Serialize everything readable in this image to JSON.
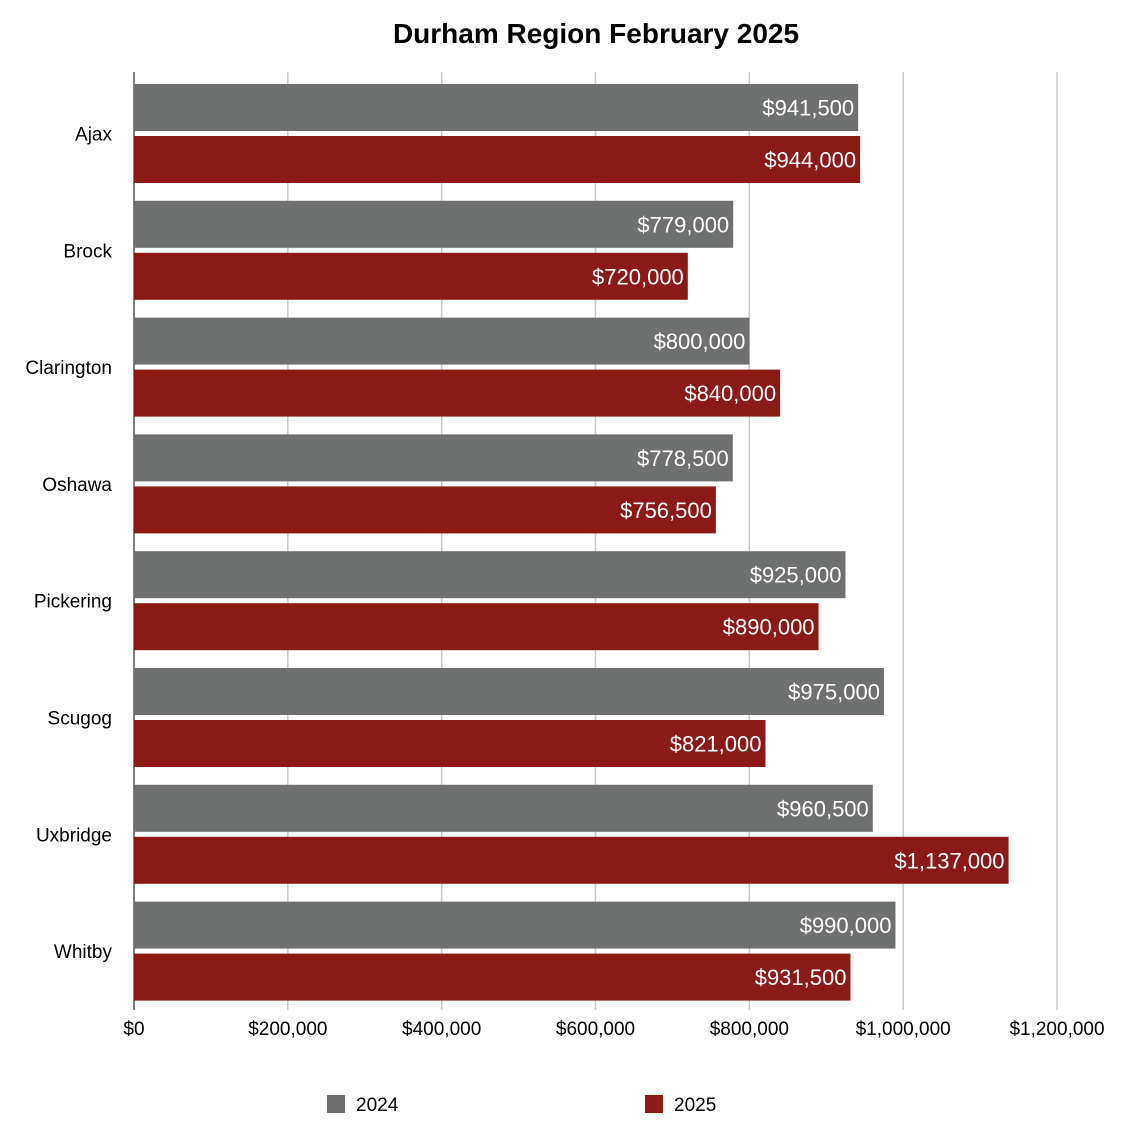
{
  "chart_data": {
    "type": "bar",
    "orientation": "horizontal",
    "title": "Durham Region February 2025",
    "categories": [
      "Ajax",
      "Brock",
      "Clarington",
      "Oshawa",
      "Pickering",
      "Scugog",
      "Uxbridge",
      "Whitby"
    ],
    "series": [
      {
        "name": "2024",
        "color": "#6e716f",
        "values": [
          941500,
          779000,
          800000,
          778500,
          925000,
          975000,
          960500,
          990000
        ],
        "labels": [
          "$941,500",
          "$779,000",
          "$800,000",
          "$778,500",
          "$925,000",
          "$975,000",
          "$960,500",
          "$990,000"
        ]
      },
      {
        "name": "2025",
        "color": "#8b1a16",
        "values": [
          944000,
          720000,
          840000,
          756500,
          890000,
          821000,
          1137000,
          931500
        ],
        "labels": [
          "$944,000",
          "$720,000",
          "$840,000",
          "$756,500",
          "$890,000",
          "$821,000",
          "$1,137,000",
          "$931,500"
        ]
      }
    ],
    "xlim": [
      0,
      1200000
    ],
    "xticks": [
      0,
      200000,
      400000,
      600000,
      800000,
      1000000,
      1200000
    ],
    "xtick_labels": [
      "$0",
      "$200,000",
      "$400,000",
      "$600,000",
      "$800,000",
      "$1,000,000",
      "$1,200,000"
    ],
    "grid": "vertical",
    "legend_position": "bottom"
  }
}
